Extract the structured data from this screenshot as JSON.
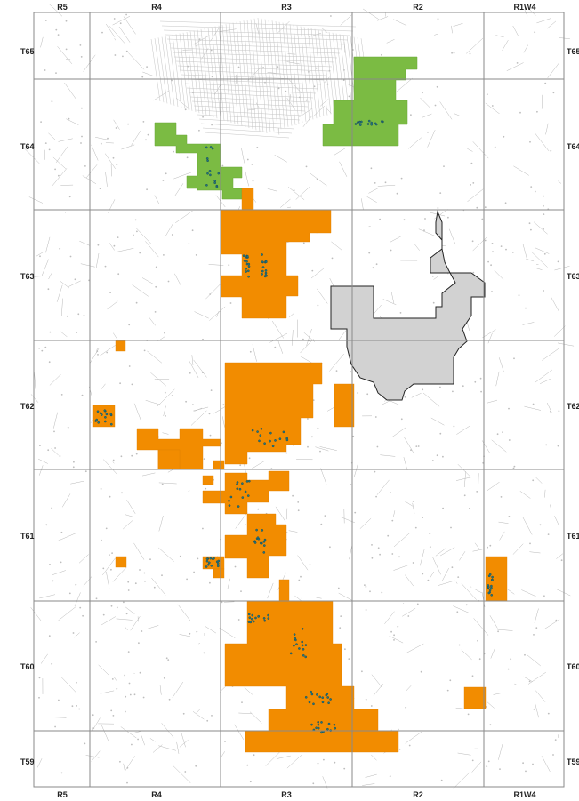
{
  "map": {
    "range_labels": [
      "R5",
      "R4",
      "R3",
      "R2",
      "R1W4"
    ],
    "township_labels": [
      "T65",
      "T64",
      "T63",
      "T62",
      "T61",
      "T60",
      "T59"
    ],
    "legend_colors": {
      "green_area": "#7cb844",
      "orange_area": "#f28c00",
      "grey_area": "#d0d0d0",
      "pipeline_lines": "#b5b5b5",
      "wells": "#1f7a7a",
      "grid": "#8a8a8a"
    }
  }
}
